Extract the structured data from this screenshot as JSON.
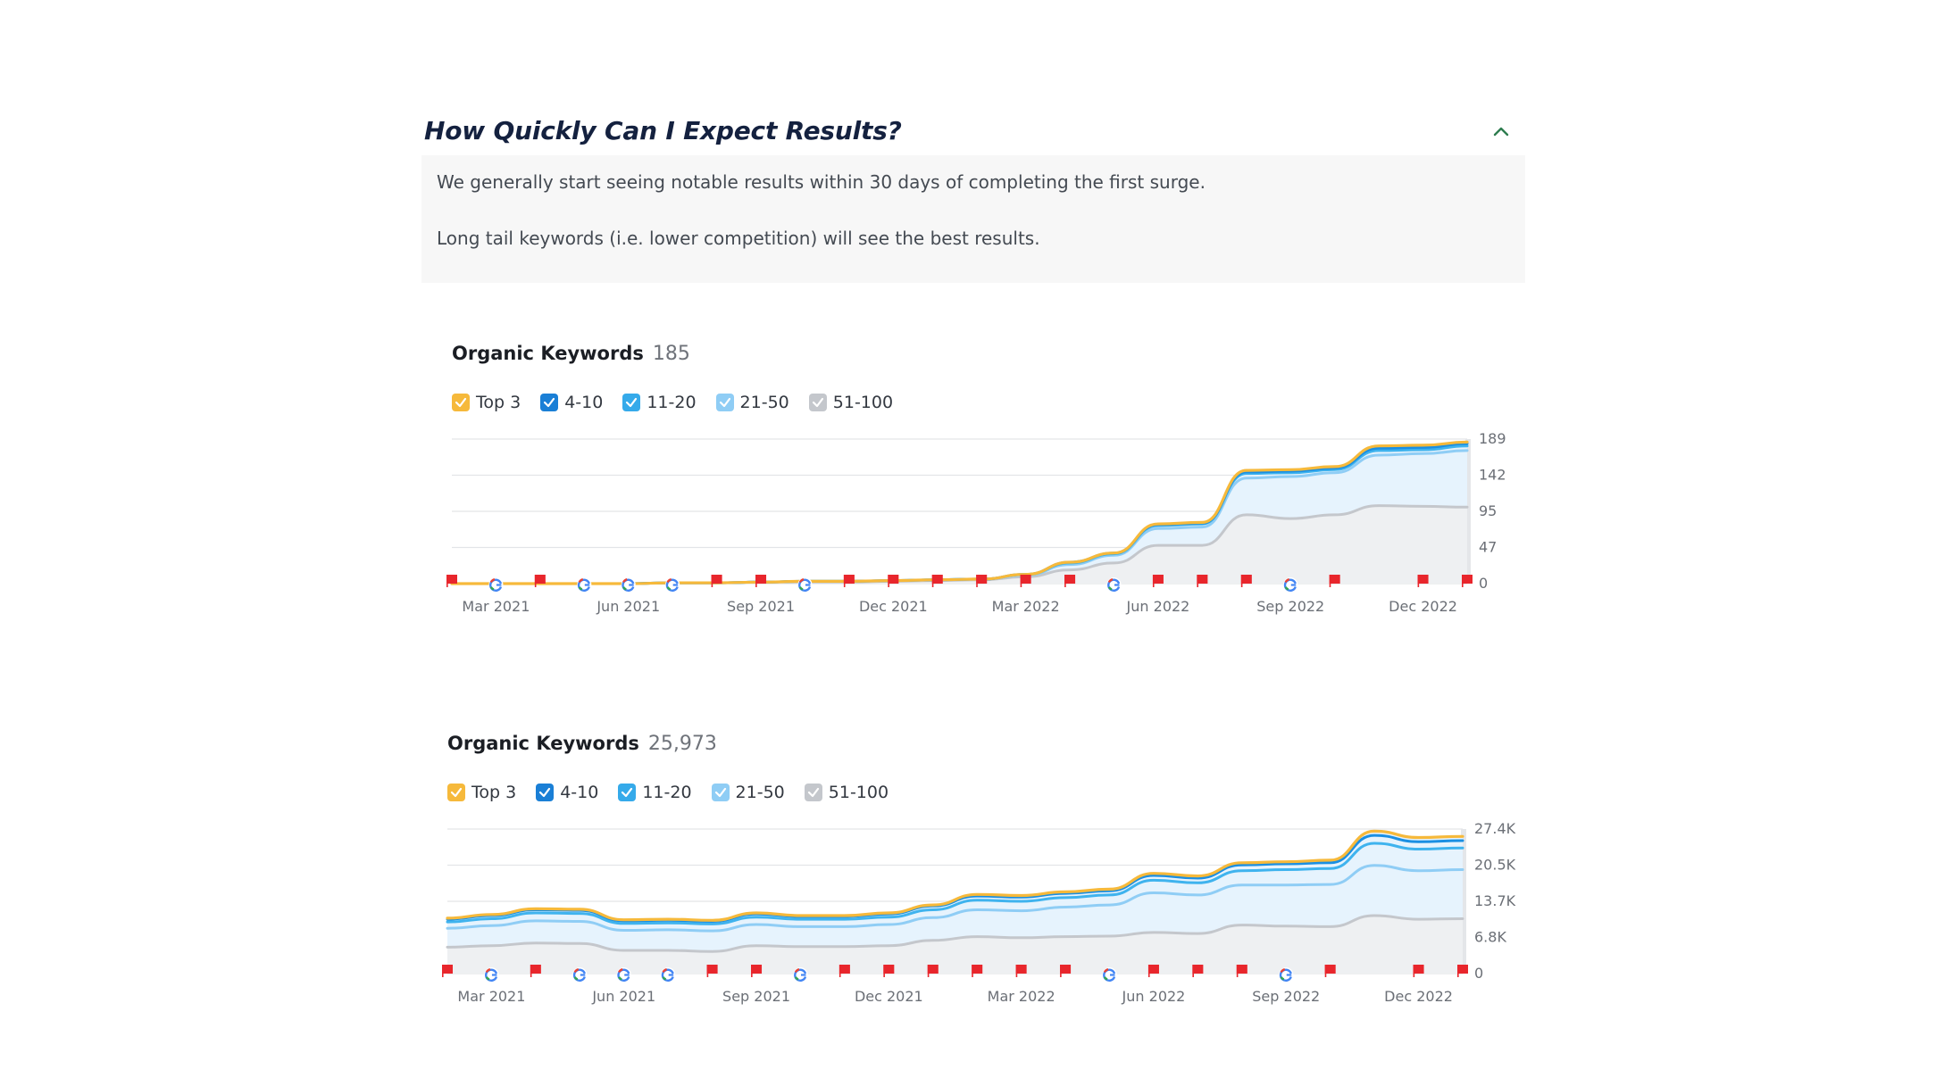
{
  "faq": {
    "question": "How Quickly Can I Expect Results?",
    "answer_lines": [
      "We generally start seeing notable results within 30 days of completing the first surge.",
      "Long tail keywords (i.e. lower competition) will see the best results."
    ],
    "toggle_icon": "chevron-up-icon"
  },
  "colors": {
    "top3": "#f6b93b",
    "pos4_10": "#1a8fe3",
    "pos11_20": "#3fb3ee",
    "pos21_50": "#8fcdf5",
    "pos51_100": "#c4c7cc",
    "fill_blue": "#e6f3fd",
    "fill_gray": "#eef0f2",
    "grid": "#e3e5e8",
    "google_flag": "#4285f4",
    "red_flag": "#e8262c"
  },
  "charts": [
    {
      "title": "Organic Keywords",
      "count": "185",
      "legend": [
        "Top 3",
        "4-10",
        "11-20",
        "21-50",
        "51-100"
      ],
      "chart_data": {
        "type": "area",
        "title": "Organic Keywords",
        "x_tick_labels": [
          "Mar 2021",
          "Jun 2021",
          "Sep 2021",
          "Dec 2021",
          "Mar 2022",
          "Jun 2022",
          "Sep 2022",
          "Dec 2022"
        ],
        "y_tick_labels": [
          "0",
          "47",
          "95",
          "142",
          "189"
        ],
        "ylim": [
          0,
          189
        ],
        "x_months": [
          "2021-02",
          "2021-03",
          "2021-04",
          "2021-05",
          "2021-06",
          "2021-07",
          "2021-08",
          "2021-09",
          "2021-10",
          "2021-11",
          "2021-12",
          "2022-01",
          "2022-02",
          "2022-03",
          "2022-04",
          "2022-05",
          "2022-06",
          "2022-07",
          "2022-08",
          "2022-09",
          "2022-10",
          "2022-11",
          "2022-12",
          "2023-01"
        ],
        "series": [
          {
            "name": "Top 3",
            "values": [
              0,
              0,
              0,
              0,
              0,
              1,
              1,
              2,
              3,
              3,
              4,
              5,
              6,
              12,
              28,
              40,
              78,
              80,
              148,
              149,
              153,
              180,
              181,
              185
            ]
          },
          {
            "name": "4-10",
            "values": [
              0,
              0,
              0,
              0,
              0,
              1,
              1,
              2,
              3,
              3,
              4,
              5,
              6,
              12,
              28,
              40,
              77,
              79,
              146,
              147,
              151,
              177,
              178,
              183
            ]
          },
          {
            "name": "11-20",
            "values": [
              0,
              0,
              0,
              0,
              0,
              1,
              1,
              2,
              3,
              3,
              4,
              5,
              6,
              12,
              27,
              39,
              76,
              78,
              144,
              145,
              149,
              174,
              175,
              180
            ]
          },
          {
            "name": "21-50",
            "values": [
              0,
              0,
              0,
              0,
              0,
              1,
              1,
              2,
              3,
              3,
              4,
              5,
              6,
              11,
              25,
              37,
              72,
              74,
              138,
              140,
              145,
              168,
              170,
              174
            ]
          },
          {
            "name": "51-100",
            "values": [
              0,
              0,
              0,
              0,
              0,
              1,
              1,
              2,
              2,
              2,
              3,
              4,
              5,
              9,
              18,
              27,
              50,
              50,
              90,
              85,
              90,
              102,
              101,
              100
            ]
          }
        ],
        "markers": [
          {
            "type": "flag",
            "month": "2021-02"
          },
          {
            "type": "google",
            "month": "2021-03"
          },
          {
            "type": "flag",
            "month": "2021-04"
          },
          {
            "type": "google",
            "month": "2021-05"
          },
          {
            "type": "google",
            "month": "2021-06"
          },
          {
            "type": "google",
            "month": "2021-07"
          },
          {
            "type": "flag",
            "month": "2021-08"
          },
          {
            "type": "flag",
            "month": "2021-09"
          },
          {
            "type": "google",
            "month": "2021-10"
          },
          {
            "type": "flag",
            "month": "2021-11"
          },
          {
            "type": "flag",
            "month": "2021-12"
          },
          {
            "type": "flag",
            "month": "2022-01"
          },
          {
            "type": "flag",
            "month": "2022-02"
          },
          {
            "type": "flag",
            "month": "2022-03"
          },
          {
            "type": "flag",
            "month": "2022-04"
          },
          {
            "type": "google",
            "month": "2022-05"
          },
          {
            "type": "flag",
            "month": "2022-06"
          },
          {
            "type": "flag",
            "month": "2022-07"
          },
          {
            "type": "flag",
            "month": "2022-08"
          },
          {
            "type": "google",
            "month": "2022-09"
          },
          {
            "type": "flag",
            "month": "2022-10"
          },
          {
            "type": "flag",
            "month": "2022-12"
          },
          {
            "type": "flag",
            "month": "2023-01"
          }
        ]
      }
    },
    {
      "title": "Organic Keywords",
      "count": "25,973",
      "legend": [
        "Top 3",
        "4-10",
        "11-20",
        "21-50",
        "51-100"
      ],
      "chart_data": {
        "type": "area",
        "title": "Organic Keywords",
        "x_tick_labels": [
          "Mar 2021",
          "Jun 2021",
          "Sep 2021",
          "Dec 2021",
          "Mar 2022",
          "Jun 2022",
          "Sep 2022",
          "Dec 2022"
        ],
        "y_tick_labels": [
          "0",
          "6.8K",
          "13.7K",
          "20.5K",
          "27.4K"
        ],
        "ylim": [
          0,
          27400
        ],
        "x_months": [
          "2021-02",
          "2021-03",
          "2021-04",
          "2021-05",
          "2021-06",
          "2021-07",
          "2021-08",
          "2021-09",
          "2021-10",
          "2021-11",
          "2021-12",
          "2022-01",
          "2022-02",
          "2022-03",
          "2022-04",
          "2022-05",
          "2022-06",
          "2022-07",
          "2022-08",
          "2022-09",
          "2022-10",
          "2022-11",
          "2022-12",
          "2023-01"
        ],
        "series": [
          {
            "name": "Top 3",
            "values": [
              10500,
              11200,
              12300,
              12200,
              10200,
              10300,
              10100,
              11500,
              11000,
              11000,
              11500,
              13000,
              15000,
              14800,
              15500,
              16000,
              19000,
              18500,
              21000,
              21200,
              21500,
              27000,
              25800,
              26000
            ]
          },
          {
            "name": "4-10",
            "values": [
              10300,
              11000,
              12100,
              12000,
              10000,
              10100,
              9900,
              11300,
              10800,
              10800,
              11300,
              12800,
              14700,
              14500,
              15200,
              15700,
              18600,
              18100,
              20600,
              20800,
              21000,
              26200,
              25000,
              25200
            ]
          },
          {
            "name": "11-20",
            "values": [
              9800,
              10400,
              11500,
              11400,
              9500,
              9600,
              9400,
              10700,
              10300,
              10300,
              10700,
              12100,
              13900,
              13700,
              14400,
              14900,
              17700,
              17200,
              19500,
              19700,
              19900,
              24700,
              23600,
              23800
            ]
          },
          {
            "name": "21-50",
            "values": [
              8600,
              9100,
              10000,
              9900,
              8200,
              8300,
              8100,
              9300,
              8900,
              8900,
              9300,
              10600,
              12100,
              11900,
              12600,
              13000,
              15300,
              14900,
              16800,
              16800,
              16900,
              20500,
              19500,
              19700
            ]
          },
          {
            "name": "51-100",
            "values": [
              5000,
              5300,
              5800,
              5700,
              4400,
              4400,
              4200,
              5300,
              5100,
              5100,
              5300,
              6300,
              7000,
              6800,
              7000,
              7100,
              7800,
              7600,
              9200,
              9000,
              8900,
              11000,
              10300,
              10400
            ]
          }
        ],
        "markers": [
          {
            "type": "flag",
            "month": "2021-02"
          },
          {
            "type": "google",
            "month": "2021-03"
          },
          {
            "type": "flag",
            "month": "2021-04"
          },
          {
            "type": "google",
            "month": "2021-05"
          },
          {
            "type": "google",
            "month": "2021-06"
          },
          {
            "type": "google",
            "month": "2021-07"
          },
          {
            "type": "flag",
            "month": "2021-08"
          },
          {
            "type": "flag",
            "month": "2021-09"
          },
          {
            "type": "google",
            "month": "2021-10"
          },
          {
            "type": "flag",
            "month": "2021-11"
          },
          {
            "type": "flag",
            "month": "2021-12"
          },
          {
            "type": "flag",
            "month": "2022-01"
          },
          {
            "type": "flag",
            "month": "2022-02"
          },
          {
            "type": "flag",
            "month": "2022-03"
          },
          {
            "type": "flag",
            "month": "2022-04"
          },
          {
            "type": "google",
            "month": "2022-05"
          },
          {
            "type": "flag",
            "month": "2022-06"
          },
          {
            "type": "flag",
            "month": "2022-07"
          },
          {
            "type": "flag",
            "month": "2022-08"
          },
          {
            "type": "google",
            "month": "2022-09"
          },
          {
            "type": "flag",
            "month": "2022-10"
          },
          {
            "type": "flag",
            "month": "2022-12"
          },
          {
            "type": "flag",
            "month": "2023-01"
          }
        ]
      }
    }
  ]
}
